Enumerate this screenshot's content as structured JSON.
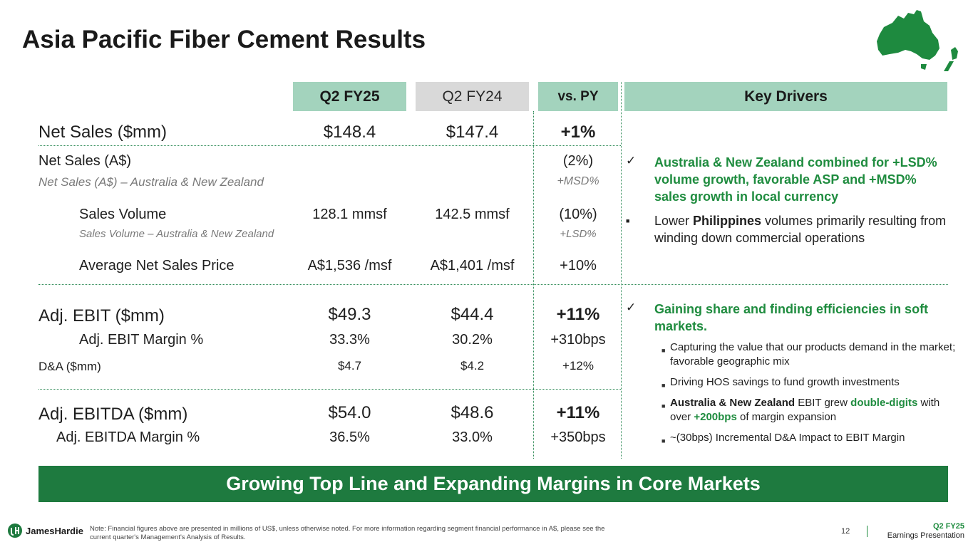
{
  "title": "Asia Pacific Fiber Cement Results",
  "headers": {
    "col1": "Q2 FY25",
    "col2": "Q2 FY24",
    "col3": "vs. PY",
    "key_drivers": "Key Drivers"
  },
  "rows": {
    "net_sales": {
      "label": "Net Sales ($mm)",
      "v1": "$148.4",
      "v2": "$147.4",
      "v3": "+1%"
    },
    "net_sales_aud": {
      "label": "Net Sales (A$)",
      "v3": "(2%)"
    },
    "net_sales_anz": {
      "label": "Net Sales (A$) – Australia & New Zealand",
      "v3": "+MSD%"
    },
    "sales_volume": {
      "label": "Sales Volume",
      "v1": "128.1 mmsf",
      "v2": "142.5 mmsf",
      "v3": "(10%)"
    },
    "sales_volume_anz": {
      "label": "Sales Volume – Australia & New Zealand",
      "v3": "+LSD%"
    },
    "avg_price": {
      "label": "Average Net Sales Price",
      "v1": "A$1,536 /msf",
      "v2": "A$1,401 /msf",
      "v3": "+10%"
    },
    "ebit": {
      "label": "Adj. EBIT ($mm)",
      "v1": "$49.3",
      "v2": "$44.4",
      "v3": "+11%"
    },
    "ebit_margin": {
      "label": "Adj. EBIT Margin %",
      "v1": "33.3%",
      "v2": "30.2%",
      "v3": "+310bps"
    },
    "da": {
      "label": "D&A ($mm)",
      "v1": "$4.7",
      "v2": "$4.2",
      "v3": "+12%"
    },
    "ebitda": {
      "label": "Adj. EBITDA ($mm)",
      "v1": "$54.0",
      "v2": "$48.6",
      "v3": "+11%"
    },
    "ebitda_margin": {
      "label": "Adj. EBITDA Margin %",
      "v1": "36.5%",
      "v2": "33.0%",
      "v3": "+350bps"
    }
  },
  "drivers": {
    "d1": "Australia & New Zealand combined for +LSD% volume growth, favorable ASP and +MSD% sales growth in local currency",
    "d2_pre": "Lower ",
    "d2_bold": "Philippines",
    "d2_post": " volumes primarily resulting from winding down commercial operations",
    "d3": "Gaining share and finding efficiencies in soft markets.",
    "s1": "Capturing the value that our products demand in the market; favorable geographic mix",
    "s2": "Driving HOS savings to fund growth investments",
    "s3_bold": "Australia & New Zealand",
    "s3_mid": " EBIT grew ",
    "s3_green1": "double-digits",
    "s3_mid2": " with over ",
    "s3_green2": "+200bps",
    "s3_post": " of margin expansion",
    "s4": "~(30bps) Incremental D&A Impact to EBIT Margin",
    "check_mark": "✓",
    "square_mark": "■"
  },
  "banner": "Growing Top Line and Expanding Margins in Core Markets",
  "footer": {
    "note": "Note: Financial figures above are presented in millions of US$, unless otherwise noted. For more information regarding segment financial performance in A$, please see the current quarter's Management's Analysis of Results.",
    "logo": "JamesHardie",
    "page": "12",
    "quarter": "Q2 FY25",
    "presentation": "Earnings Presentation"
  },
  "colors": {
    "accent_green": "#1e7a3f",
    "header_green": "#a3d3bd",
    "header_gray": "#d9d9d9",
    "text_green": "#1f8c3f"
  }
}
